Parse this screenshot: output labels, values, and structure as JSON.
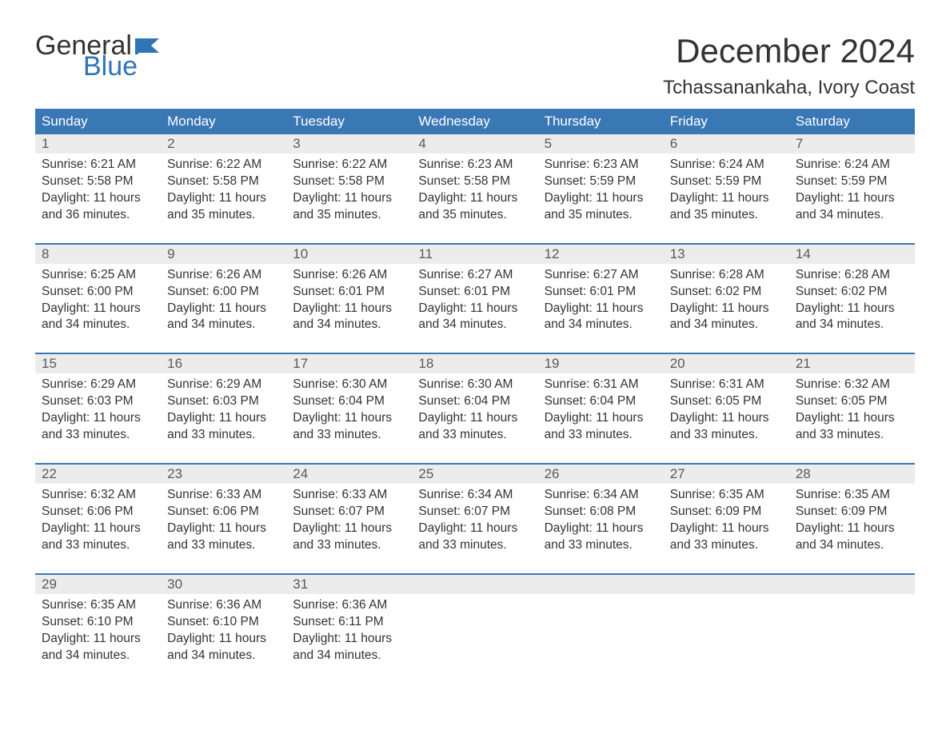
{
  "logo": {
    "general": "General",
    "blue": "Blue",
    "flag_color": "#2f75b5"
  },
  "title": "December 2024",
  "location": "Tchassanankaha, Ivory Coast",
  "colors": {
    "header_bg": "#3a78b5",
    "header_text": "#ffffff",
    "daynum_bg": "#ececec",
    "text": "#333333",
    "week_divider": "#3a78b5",
    "logo_blue": "#2f75b5"
  },
  "typography": {
    "title_fontsize": 42,
    "location_fontsize": 24,
    "header_fontsize": 17,
    "daynum_fontsize": 17,
    "cell_fontsize": 15.5
  },
  "day_names": [
    "Sunday",
    "Monday",
    "Tuesday",
    "Wednesday",
    "Thursday",
    "Friday",
    "Saturday"
  ],
  "weeks": [
    [
      {
        "n": "1",
        "sunrise": "Sunrise: 6:21 AM",
        "sunset": "Sunset: 5:58 PM",
        "d1": "Daylight: 11 hours",
        "d2": "and 36 minutes."
      },
      {
        "n": "2",
        "sunrise": "Sunrise: 6:22 AM",
        "sunset": "Sunset: 5:58 PM",
        "d1": "Daylight: 11 hours",
        "d2": "and 35 minutes."
      },
      {
        "n": "3",
        "sunrise": "Sunrise: 6:22 AM",
        "sunset": "Sunset: 5:58 PM",
        "d1": "Daylight: 11 hours",
        "d2": "and 35 minutes."
      },
      {
        "n": "4",
        "sunrise": "Sunrise: 6:23 AM",
        "sunset": "Sunset: 5:58 PM",
        "d1": "Daylight: 11 hours",
        "d2": "and 35 minutes."
      },
      {
        "n": "5",
        "sunrise": "Sunrise: 6:23 AM",
        "sunset": "Sunset: 5:59 PM",
        "d1": "Daylight: 11 hours",
        "d2": "and 35 minutes."
      },
      {
        "n": "6",
        "sunrise": "Sunrise: 6:24 AM",
        "sunset": "Sunset: 5:59 PM",
        "d1": "Daylight: 11 hours",
        "d2": "and 35 minutes."
      },
      {
        "n": "7",
        "sunrise": "Sunrise: 6:24 AM",
        "sunset": "Sunset: 5:59 PM",
        "d1": "Daylight: 11 hours",
        "d2": "and 34 minutes."
      }
    ],
    [
      {
        "n": "8",
        "sunrise": "Sunrise: 6:25 AM",
        "sunset": "Sunset: 6:00 PM",
        "d1": "Daylight: 11 hours",
        "d2": "and 34 minutes."
      },
      {
        "n": "9",
        "sunrise": "Sunrise: 6:26 AM",
        "sunset": "Sunset: 6:00 PM",
        "d1": "Daylight: 11 hours",
        "d2": "and 34 minutes."
      },
      {
        "n": "10",
        "sunrise": "Sunrise: 6:26 AM",
        "sunset": "Sunset: 6:01 PM",
        "d1": "Daylight: 11 hours",
        "d2": "and 34 minutes."
      },
      {
        "n": "11",
        "sunrise": "Sunrise: 6:27 AM",
        "sunset": "Sunset: 6:01 PM",
        "d1": "Daylight: 11 hours",
        "d2": "and 34 minutes."
      },
      {
        "n": "12",
        "sunrise": "Sunrise: 6:27 AM",
        "sunset": "Sunset: 6:01 PM",
        "d1": "Daylight: 11 hours",
        "d2": "and 34 minutes."
      },
      {
        "n": "13",
        "sunrise": "Sunrise: 6:28 AM",
        "sunset": "Sunset: 6:02 PM",
        "d1": "Daylight: 11 hours",
        "d2": "and 34 minutes."
      },
      {
        "n": "14",
        "sunrise": "Sunrise: 6:28 AM",
        "sunset": "Sunset: 6:02 PM",
        "d1": "Daylight: 11 hours",
        "d2": "and 34 minutes."
      }
    ],
    [
      {
        "n": "15",
        "sunrise": "Sunrise: 6:29 AM",
        "sunset": "Sunset: 6:03 PM",
        "d1": "Daylight: 11 hours",
        "d2": "and 33 minutes."
      },
      {
        "n": "16",
        "sunrise": "Sunrise: 6:29 AM",
        "sunset": "Sunset: 6:03 PM",
        "d1": "Daylight: 11 hours",
        "d2": "and 33 minutes."
      },
      {
        "n": "17",
        "sunrise": "Sunrise: 6:30 AM",
        "sunset": "Sunset: 6:04 PM",
        "d1": "Daylight: 11 hours",
        "d2": "and 33 minutes."
      },
      {
        "n": "18",
        "sunrise": "Sunrise: 6:30 AM",
        "sunset": "Sunset: 6:04 PM",
        "d1": "Daylight: 11 hours",
        "d2": "and 33 minutes."
      },
      {
        "n": "19",
        "sunrise": "Sunrise: 6:31 AM",
        "sunset": "Sunset: 6:04 PM",
        "d1": "Daylight: 11 hours",
        "d2": "and 33 minutes."
      },
      {
        "n": "20",
        "sunrise": "Sunrise: 6:31 AM",
        "sunset": "Sunset: 6:05 PM",
        "d1": "Daylight: 11 hours",
        "d2": "and 33 minutes."
      },
      {
        "n": "21",
        "sunrise": "Sunrise: 6:32 AM",
        "sunset": "Sunset: 6:05 PM",
        "d1": "Daylight: 11 hours",
        "d2": "and 33 minutes."
      }
    ],
    [
      {
        "n": "22",
        "sunrise": "Sunrise: 6:32 AM",
        "sunset": "Sunset: 6:06 PM",
        "d1": "Daylight: 11 hours",
        "d2": "and 33 minutes."
      },
      {
        "n": "23",
        "sunrise": "Sunrise: 6:33 AM",
        "sunset": "Sunset: 6:06 PM",
        "d1": "Daylight: 11 hours",
        "d2": "and 33 minutes."
      },
      {
        "n": "24",
        "sunrise": "Sunrise: 6:33 AM",
        "sunset": "Sunset: 6:07 PM",
        "d1": "Daylight: 11 hours",
        "d2": "and 33 minutes."
      },
      {
        "n": "25",
        "sunrise": "Sunrise: 6:34 AM",
        "sunset": "Sunset: 6:07 PM",
        "d1": "Daylight: 11 hours",
        "d2": "and 33 minutes."
      },
      {
        "n": "26",
        "sunrise": "Sunrise: 6:34 AM",
        "sunset": "Sunset: 6:08 PM",
        "d1": "Daylight: 11 hours",
        "d2": "and 33 minutes."
      },
      {
        "n": "27",
        "sunrise": "Sunrise: 6:35 AM",
        "sunset": "Sunset: 6:09 PM",
        "d1": "Daylight: 11 hours",
        "d2": "and 33 minutes."
      },
      {
        "n": "28",
        "sunrise": "Sunrise: 6:35 AM",
        "sunset": "Sunset: 6:09 PM",
        "d1": "Daylight: 11 hours",
        "d2": "and 34 minutes."
      }
    ],
    [
      {
        "n": "29",
        "sunrise": "Sunrise: 6:35 AM",
        "sunset": "Sunset: 6:10 PM",
        "d1": "Daylight: 11 hours",
        "d2": "and 34 minutes."
      },
      {
        "n": "30",
        "sunrise": "Sunrise: 6:36 AM",
        "sunset": "Sunset: 6:10 PM",
        "d1": "Daylight: 11 hours",
        "d2": "and 34 minutes."
      },
      {
        "n": "31",
        "sunrise": "Sunrise: 6:36 AM",
        "sunset": "Sunset: 6:11 PM",
        "d1": "Daylight: 11 hours",
        "d2": "and 34 minutes."
      },
      null,
      null,
      null,
      null
    ]
  ]
}
